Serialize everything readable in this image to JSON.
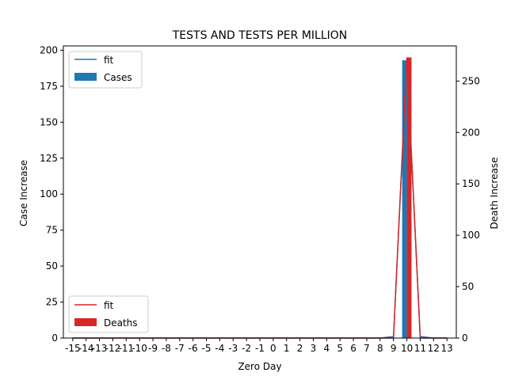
{
  "chart_data": {
    "type": "bar",
    "title": "TESTS AND TESTS PER MILLION",
    "xlabel": "Zero Day",
    "ylabel": "Case Increase",
    "y2label": "Death Increase",
    "categories": [
      "-15",
      "-14",
      "-13",
      "-12",
      "-11",
      "-10",
      "-9",
      "-8",
      "-7",
      "-6",
      "-5",
      "-4",
      "-3",
      "-2",
      "-1",
      "0",
      "1",
      "2",
      "3",
      "4",
      "5",
      "6",
      "7",
      "8",
      "9",
      "10",
      "11",
      "12",
      "13"
    ],
    "ylim": [
      0,
      203
    ],
    "y2lim": [
      0,
      284.2
    ],
    "yticks": [
      0,
      25,
      50,
      75,
      100,
      125,
      150,
      175,
      200
    ],
    "y2ticks": [
      0,
      50,
      100,
      150,
      200,
      250
    ],
    "legend_top": {
      "fit": "fit",
      "bars": "Cases",
      "placement": "upper-left"
    },
    "legend_bottom": {
      "fit": "fit",
      "bars": "Deaths",
      "placement": "lower-left"
    },
    "colors": {
      "cases": "#1f77b4",
      "deaths": "#d62728"
    },
    "series": [
      {
        "name": "Cases",
        "axis": "left",
        "kind": "bar",
        "values": [
          0,
          0,
          0,
          0,
          0,
          0,
          0,
          0,
          0,
          0,
          0,
          0,
          0,
          0,
          0,
          0,
          0,
          0,
          0,
          0,
          0,
          0,
          0,
          0,
          0,
          193,
          0,
          0,
          0
        ]
      },
      {
        "name": "Deaths",
        "axis": "right",
        "kind": "bar",
        "values": [
          0,
          0,
          0,
          0,
          0,
          0,
          0,
          0,
          0,
          0,
          0,
          0,
          0,
          0,
          0,
          0,
          0,
          0,
          0,
          0,
          0,
          0,
          0,
          0,
          0,
          273,
          0,
          0,
          0
        ]
      },
      {
        "name": "fit",
        "axis": "left",
        "kind": "line",
        "values": [
          0,
          0,
          0,
          0,
          0,
          0,
          0,
          0,
          0,
          0,
          0,
          0,
          0,
          0,
          0,
          0,
          0,
          0,
          0,
          0,
          0,
          0,
          0,
          0,
          1,
          193,
          1,
          0,
          0
        ]
      },
      {
        "name": "fit",
        "axis": "right",
        "kind": "line",
        "values": [
          0,
          0,
          0,
          0,
          0,
          0,
          0,
          0,
          0,
          0,
          0,
          0,
          0,
          0,
          0,
          0,
          0,
          0,
          0,
          0,
          0,
          0,
          0,
          0,
          0,
          273,
          0,
          0,
          0
        ]
      }
    ]
  }
}
